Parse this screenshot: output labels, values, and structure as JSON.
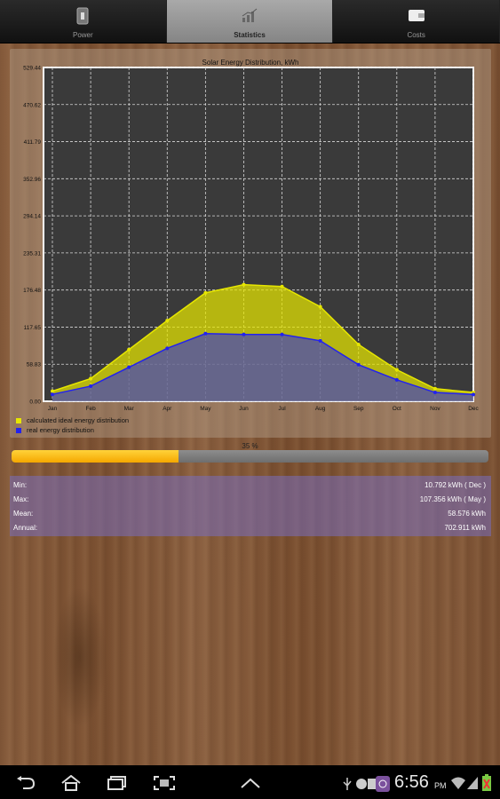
{
  "tabs": [
    {
      "label": "Power",
      "icon": "phone-battery-icon",
      "active": false
    },
    {
      "label": "Statistics",
      "icon": "bar-chart-icon",
      "active": true
    },
    {
      "label": "Costs",
      "icon": "wallet-icon",
      "active": false
    }
  ],
  "chart_data": {
    "type": "area",
    "title": "Solar Energy Distribution, kWh",
    "categories": [
      "Jan",
      "Feb",
      "Mar",
      "Apr",
      "May",
      "Jun",
      "Jul",
      "Aug",
      "Sep",
      "Oct",
      "Nov",
      "Dec"
    ],
    "y_ticks": [
      "0.00",
      "58.83",
      "117.65",
      "176.48",
      "235.31",
      "294.14",
      "352.96",
      "411.79",
      "470.62",
      "529.44"
    ],
    "ylim": [
      0,
      529.44
    ],
    "grid": true,
    "legend_position": "bottom-left",
    "series": [
      {
        "name": "calculated ideal energy distribution",
        "color": "#e6e600",
        "values": [
          16,
          36,
          82,
          128,
          172,
          185,
          182,
          150,
          90,
          50,
          20,
          14
        ]
      },
      {
        "name": "real energy distribution",
        "color": "#2222ee",
        "values": [
          11,
          24,
          54,
          84,
          107.356,
          106,
          106,
          96,
          58,
          34,
          14,
          10.792
        ]
      }
    ]
  },
  "progress": {
    "label": "35 %",
    "value": 0.35
  },
  "stats": [
    {
      "label": "Min:",
      "value": "10.792 kWh ( Dec )"
    },
    {
      "label": "Max:",
      "value": "107.356 kWh ( May )"
    },
    {
      "label": "Mean:",
      "value": "58.576 kWh"
    },
    {
      "label": "Annual:",
      "value": "702.911 kWh"
    }
  ],
  "statusbar": {
    "time": "6:56",
    "ampm": "PM"
  },
  "colors": {
    "accent": "#f5b800",
    "stats_bg": "#7f76c0",
    "plot_bg": "#3a3a3a"
  }
}
